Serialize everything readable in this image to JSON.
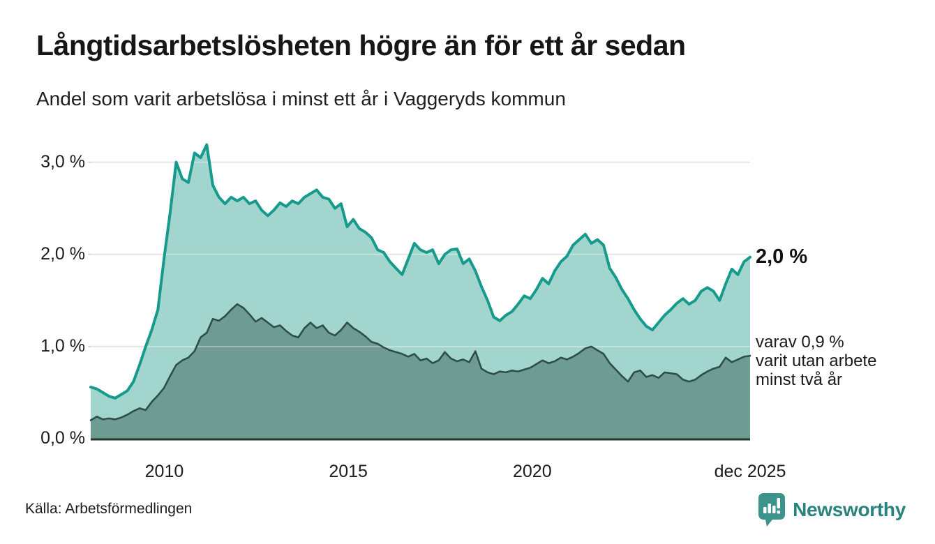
{
  "header": {
    "title": "Långtidsarbetslösheten högre än för ett år sedan",
    "subtitle": "Andel som varit arbetslösa i minst ett år i Vaggeryds kommun"
  },
  "annotations": {
    "latest_value": "2,0 %",
    "secondary_line1": "varav 0,9 %",
    "secondary_line2": "varit utan arbete",
    "secondary_line3": "minst två år"
  },
  "footer": {
    "source": "Källa: Arbetsförmedlingen",
    "brand": "Newsworthy",
    "brand_icon": "speech-bubble-bar-chart-icon"
  },
  "colors": {
    "teal_line": "#169a8c",
    "light_fill": "#a2d5ce",
    "dark_fill": "#6e9b92",
    "dark_line": "#2e4f48",
    "grid": "#d9d9d9",
    "grid_overlay": "rgba(255,255,255,0.35)",
    "axis": "#233530",
    "brand_mark": "#3c938b",
    "brand_text": "#2a827c"
  },
  "chart_data": {
    "type": "area",
    "title": "Långtidsarbetslösheten högre än för ett år sedan",
    "subtitle": "Andel som varit arbetslösa i minst ett år i Vaggeryds kommun",
    "unit": "% av befolkningen/arbetskraften",
    "xlim": [
      2008.0,
      2025.92
    ],
    "ylim": [
      0,
      3.3
    ],
    "grid": "horizontal",
    "x_ticks": [
      {
        "label": "2010",
        "t": 2010
      },
      {
        "label": "2015",
        "t": 2015
      },
      {
        "label": "2020",
        "t": 2020
      },
      {
        "label": "dec 2025",
        "t": 2025.92
      }
    ],
    "y_ticks": [
      {
        "label": "0,0 %",
        "v": 0
      },
      {
        "label": "1,0 %",
        "v": 1
      },
      {
        "label": "2,0 %",
        "v": 2
      },
      {
        "label": "3,0 %",
        "v": 3
      }
    ],
    "y_gridlines": [
      1,
      2,
      3
    ],
    "points_evenly_spaced": true,
    "series": [
      {
        "name": "Arbetslösa minst ett år",
        "latest_label": "2,0 %",
        "latest_value": 2.0,
        "values": [
          0.56,
          0.54,
          0.5,
          0.46,
          0.44,
          0.48,
          0.52,
          0.62,
          0.8,
          1.0,
          1.18,
          1.4,
          1.95,
          2.45,
          3.0,
          2.82,
          2.78,
          3.1,
          3.05,
          3.19,
          2.75,
          2.62,
          2.55,
          2.62,
          2.58,
          2.62,
          2.55,
          2.58,
          2.48,
          2.42,
          2.48,
          2.56,
          2.52,
          2.58,
          2.55,
          2.62,
          2.66,
          2.7,
          2.62,
          2.6,
          2.5,
          2.55,
          2.3,
          2.38,
          2.28,
          2.24,
          2.18,
          2.05,
          2.02,
          1.92,
          1.85,
          1.78,
          1.95,
          2.12,
          2.05,
          2.02,
          2.05,
          1.9,
          2.0,
          2.05,
          2.06,
          1.9,
          1.95,
          1.82,
          1.65,
          1.5,
          1.32,
          1.28,
          1.34,
          1.38,
          1.46,
          1.55,
          1.52,
          1.62,
          1.74,
          1.68,
          1.82,
          1.92,
          1.98,
          2.1,
          2.16,
          2.22,
          2.12,
          2.16,
          2.1,
          1.85,
          1.75,
          1.62,
          1.52,
          1.4,
          1.3,
          1.22,
          1.18,
          1.26,
          1.34,
          1.4,
          1.47,
          1.52,
          1.46,
          1.5,
          1.6,
          1.64,
          1.6,
          1.5,
          1.68,
          1.84,
          1.78,
          1.92,
          1.97
        ]
      },
      {
        "name": "varav utan arbete minst två år",
        "latest_label": "0,9 %",
        "latest_value": 0.9,
        "values": [
          0.2,
          0.24,
          0.21,
          0.22,
          0.21,
          0.23,
          0.26,
          0.3,
          0.33,
          0.31,
          0.4,
          0.47,
          0.55,
          0.68,
          0.8,
          0.85,
          0.88,
          0.95,
          1.1,
          1.15,
          1.3,
          1.28,
          1.33,
          1.4,
          1.46,
          1.42,
          1.35,
          1.27,
          1.31,
          1.26,
          1.21,
          1.23,
          1.17,
          1.12,
          1.1,
          1.2,
          1.26,
          1.2,
          1.23,
          1.15,
          1.12,
          1.18,
          1.26,
          1.2,
          1.16,
          1.11,
          1.05,
          1.03,
          0.99,
          0.96,
          0.94,
          0.92,
          0.89,
          0.92,
          0.85,
          0.87,
          0.82,
          0.85,
          0.94,
          0.87,
          0.84,
          0.86,
          0.83,
          0.95,
          0.76,
          0.72,
          0.7,
          0.73,
          0.72,
          0.74,
          0.73,
          0.75,
          0.77,
          0.81,
          0.85,
          0.82,
          0.84,
          0.88,
          0.86,
          0.89,
          0.93,
          0.98,
          1.0,
          0.96,
          0.92,
          0.82,
          0.75,
          0.68,
          0.62,
          0.72,
          0.74,
          0.67,
          0.69,
          0.66,
          0.72,
          0.71,
          0.7,
          0.64,
          0.62,
          0.64,
          0.69,
          0.73,
          0.76,
          0.78,
          0.88,
          0.83,
          0.86,
          0.89,
          0.9
        ]
      }
    ]
  }
}
